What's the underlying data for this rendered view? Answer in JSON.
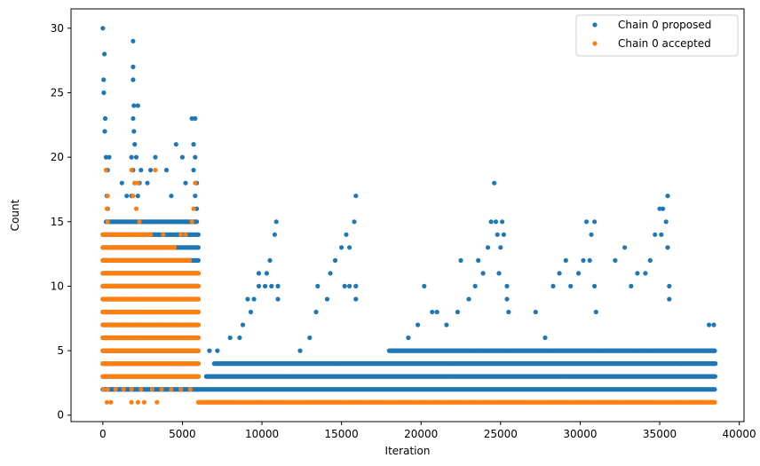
{
  "chart_data": {
    "type": "scatter",
    "title": "",
    "xlabel": "Iteration",
    "ylabel": "Count",
    "xlim": [
      -2000,
      40300
    ],
    "ylim": [
      -0.5,
      31.5
    ],
    "x_ticks": [
      0,
      5000,
      10000,
      15000,
      20000,
      25000,
      30000,
      35000,
      40000
    ],
    "y_ticks": [
      0,
      5,
      10,
      15,
      20,
      25,
      30
    ],
    "grid": false,
    "legend_position": "top-right",
    "series": [
      {
        "name": "Chain 0 proposed",
        "color": "#1f77b4",
        "bands": [
          {
            "y": 2,
            "x": [
              0,
              6000
            ]
          },
          {
            "y": 3,
            "x": [
              0,
              6000
            ]
          },
          {
            "y": 4,
            "x": [
              0,
              6000
            ]
          },
          {
            "y": 5,
            "x": [
              0,
              6000
            ]
          },
          {
            "y": 6,
            "x": [
              0,
              6000
            ]
          },
          {
            "y": 7,
            "x": [
              0,
              6000
            ]
          },
          {
            "y": 8,
            "x": [
              0,
              6000
            ]
          },
          {
            "y": 9,
            "x": [
              0,
              6000
            ]
          },
          {
            "y": 10,
            "x": [
              0,
              6000
            ]
          },
          {
            "y": 11,
            "x": [
              0,
              6000
            ]
          },
          {
            "y": 12,
            "x": [
              0,
              6000
            ]
          },
          {
            "y": 13,
            "x": [
              0,
              6000
            ]
          },
          {
            "y": 14,
            "x": [
              0,
              6000
            ]
          },
          {
            "y": 15,
            "x": [
              200,
              5900
            ]
          },
          {
            "y": 2,
            "x": [
              6000,
              38500
            ]
          },
          {
            "y": 3,
            "x": [
              6500,
              38500
            ]
          },
          {
            "y": 4,
            "x": [
              7000,
              38500
            ]
          },
          {
            "y": 5,
            "x": [
              18000,
              38500
            ]
          }
        ],
        "values": [
          {
            "x": 0,
            "y": 30
          },
          {
            "x": 100,
            "y": 28
          },
          {
            "x": 50,
            "y": 26
          },
          {
            "x": 60,
            "y": 25
          },
          {
            "x": 150,
            "y": 23
          },
          {
            "x": 120,
            "y": 22
          },
          {
            "x": 200,
            "y": 20
          },
          {
            "x": 400,
            "y": 20
          },
          {
            "x": 300,
            "y": 19
          },
          {
            "x": 250,
            "y": 17
          },
          {
            "x": 300,
            "y": 16
          },
          {
            "x": 1200,
            "y": 18
          },
          {
            "x": 1500,
            "y": 17
          },
          {
            "x": 1900,
            "y": 29
          },
          {
            "x": 1900,
            "y": 27
          },
          {
            "x": 1900,
            "y": 26
          },
          {
            "x": 1950,
            "y": 24
          },
          {
            "x": 2200,
            "y": 24
          },
          {
            "x": 1900,
            "y": 23
          },
          {
            "x": 1950,
            "y": 22
          },
          {
            "x": 2000,
            "y": 21
          },
          {
            "x": 1800,
            "y": 20
          },
          {
            "x": 2100,
            "y": 20
          },
          {
            "x": 1900,
            "y": 19
          },
          {
            "x": 2400,
            "y": 19
          },
          {
            "x": 2000,
            "y": 18
          },
          {
            "x": 2300,
            "y": 18
          },
          {
            "x": 1800,
            "y": 17
          },
          {
            "x": 2200,
            "y": 17
          },
          {
            "x": 2800,
            "y": 18
          },
          {
            "x": 3000,
            "y": 19
          },
          {
            "x": 3300,
            "y": 20
          },
          {
            "x": 4000,
            "y": 19
          },
          {
            "x": 4300,
            "y": 17
          },
          {
            "x": 4600,
            "y": 21
          },
          {
            "x": 5000,
            "y": 20
          },
          {
            "x": 5200,
            "y": 18
          },
          {
            "x": 5600,
            "y": 23
          },
          {
            "x": 5800,
            "y": 23
          },
          {
            "x": 5700,
            "y": 21
          },
          {
            "x": 5800,
            "y": 20
          },
          {
            "x": 5700,
            "y": 19
          },
          {
            "x": 5900,
            "y": 18
          },
          {
            "x": 5800,
            "y": 17
          },
          {
            "x": 5900,
            "y": 16
          },
          {
            "x": 6700,
            "y": 5
          },
          {
            "x": 7200,
            "y": 5
          },
          {
            "x": 8000,
            "y": 6
          },
          {
            "x": 8600,
            "y": 6
          },
          {
            "x": 8800,
            "y": 7
          },
          {
            "x": 9300,
            "y": 8
          },
          {
            "x": 9100,
            "y": 9
          },
          {
            "x": 9500,
            "y": 9
          },
          {
            "x": 9800,
            "y": 10
          },
          {
            "x": 9800,
            "y": 11
          },
          {
            "x": 10300,
            "y": 11
          },
          {
            "x": 10500,
            "y": 12
          },
          {
            "x": 10800,
            "y": 14
          },
          {
            "x": 10900,
            "y": 15
          },
          {
            "x": 10200,
            "y": 10
          },
          {
            "x": 10600,
            "y": 10
          },
          {
            "x": 11000,
            "y": 10
          },
          {
            "x": 11000,
            "y": 9
          },
          {
            "x": 12400,
            "y": 5
          },
          {
            "x": 13000,
            "y": 6
          },
          {
            "x": 13400,
            "y": 8
          },
          {
            "x": 13500,
            "y": 10
          },
          {
            "x": 14100,
            "y": 9
          },
          {
            "x": 14300,
            "y": 11
          },
          {
            "x": 14600,
            "y": 12
          },
          {
            "x": 15000,
            "y": 13
          },
          {
            "x": 15300,
            "y": 14
          },
          {
            "x": 15500,
            "y": 13
          },
          {
            "x": 15800,
            "y": 15
          },
          {
            "x": 15900,
            "y": 17
          },
          {
            "x": 15900,
            "y": 10
          },
          {
            "x": 15900,
            "y": 9
          },
          {
            "x": 15500,
            "y": 10
          },
          {
            "x": 15200,
            "y": 10
          },
          {
            "x": 17200,
            "y": 4
          },
          {
            "x": 18500,
            "y": 5
          },
          {
            "x": 19200,
            "y": 6
          },
          {
            "x": 19800,
            "y": 7
          },
          {
            "x": 20200,
            "y": 10
          },
          {
            "x": 20700,
            "y": 8
          },
          {
            "x": 21000,
            "y": 8
          },
          {
            "x": 21600,
            "y": 7
          },
          {
            "x": 22300,
            "y": 8
          },
          {
            "x": 22500,
            "y": 12
          },
          {
            "x": 23000,
            "y": 9
          },
          {
            "x": 23400,
            "y": 10
          },
          {
            "x": 23600,
            "y": 12
          },
          {
            "x": 23900,
            "y": 11
          },
          {
            "x": 24200,
            "y": 13
          },
          {
            "x": 24400,
            "y": 15
          },
          {
            "x": 24600,
            "y": 18
          },
          {
            "x": 24700,
            "y": 15
          },
          {
            "x": 24800,
            "y": 14
          },
          {
            "x": 25100,
            "y": 15
          },
          {
            "x": 25000,
            "y": 13
          },
          {
            "x": 25200,
            "y": 14
          },
          {
            "x": 24900,
            "y": 11
          },
          {
            "x": 25400,
            "y": 9
          },
          {
            "x": 25400,
            "y": 10
          },
          {
            "x": 25500,
            "y": 8
          },
          {
            "x": 27200,
            "y": 8
          },
          {
            "x": 27800,
            "y": 6
          },
          {
            "x": 28300,
            "y": 10
          },
          {
            "x": 28700,
            "y": 11
          },
          {
            "x": 29100,
            "y": 12
          },
          {
            "x": 29400,
            "y": 10
          },
          {
            "x": 29900,
            "y": 11
          },
          {
            "x": 30200,
            "y": 12
          },
          {
            "x": 30400,
            "y": 15
          },
          {
            "x": 30700,
            "y": 14
          },
          {
            "x": 30900,
            "y": 15
          },
          {
            "x": 30600,
            "y": 12
          },
          {
            "x": 30900,
            "y": 10
          },
          {
            "x": 31000,
            "y": 8
          },
          {
            "x": 32200,
            "y": 12
          },
          {
            "x": 32800,
            "y": 13
          },
          {
            "x": 33200,
            "y": 10
          },
          {
            "x": 33600,
            "y": 11
          },
          {
            "x": 34100,
            "y": 11
          },
          {
            "x": 34400,
            "y": 12
          },
          {
            "x": 34700,
            "y": 14
          },
          {
            "x": 35000,
            "y": 16
          },
          {
            "x": 35200,
            "y": 16
          },
          {
            "x": 35500,
            "y": 17
          },
          {
            "x": 35400,
            "y": 15
          },
          {
            "x": 35100,
            "y": 14
          },
          {
            "x": 35500,
            "y": 13
          },
          {
            "x": 35600,
            "y": 10
          },
          {
            "x": 35600,
            "y": 9
          },
          {
            "x": 36300,
            "y": 4
          },
          {
            "x": 36800,
            "y": 4
          },
          {
            "x": 37800,
            "y": 5
          },
          {
            "x": 38100,
            "y": 7
          },
          {
            "x": 38400,
            "y": 7
          },
          {
            "x": 38400,
            "y": 5
          }
        ]
      },
      {
        "name": "Chain 0 accepted",
        "color": "#ff7f0e",
        "bands": [
          {
            "y": 1,
            "x": [
              6000,
              38500
            ]
          },
          {
            "y": 3,
            "x": [
              0,
              6000
            ]
          },
          {
            "y": 4,
            "x": [
              0,
              6000
            ]
          },
          {
            "y": 5,
            "x": [
              0,
              6000
            ]
          },
          {
            "y": 6,
            "x": [
              0,
              6000
            ]
          },
          {
            "y": 7,
            "x": [
              0,
              6000
            ]
          },
          {
            "y": 8,
            "x": [
              0,
              6000
            ]
          },
          {
            "y": 9,
            "x": [
              0,
              6000
            ]
          },
          {
            "y": 10,
            "x": [
              0,
              6000
            ]
          },
          {
            "y": 11,
            "x": [
              0,
              6000
            ]
          },
          {
            "y": 12,
            "x": [
              0,
              5500
            ]
          },
          {
            "y": 13,
            "x": [
              0,
              4500
            ]
          },
          {
            "y": 14,
            "x": [
              0,
              3000
            ]
          }
        ],
        "values": [
          {
            "x": 50,
            "y": 2
          },
          {
            "x": 300,
            "y": 2
          },
          {
            "x": 800,
            "y": 2
          },
          {
            "x": 1300,
            "y": 2
          },
          {
            "x": 1800,
            "y": 2
          },
          {
            "x": 2400,
            "y": 2
          },
          {
            "x": 3100,
            "y": 2
          },
          {
            "x": 3700,
            "y": 2
          },
          {
            "x": 4300,
            "y": 2
          },
          {
            "x": 4900,
            "y": 2
          },
          {
            "x": 5500,
            "y": 2
          },
          {
            "x": 250,
            "y": 1
          },
          {
            "x": 500,
            "y": 1
          },
          {
            "x": 1800,
            "y": 1
          },
          {
            "x": 2200,
            "y": 1
          },
          {
            "x": 2600,
            "y": 1
          },
          {
            "x": 3400,
            "y": 1
          },
          {
            "x": 200,
            "y": 19
          },
          {
            "x": 300,
            "y": 17
          },
          {
            "x": 250,
            "y": 16
          },
          {
            "x": 300,
            "y": 15
          },
          {
            "x": 1800,
            "y": 19
          },
          {
            "x": 2000,
            "y": 18
          },
          {
            "x": 2200,
            "y": 18
          },
          {
            "x": 1900,
            "y": 17
          },
          {
            "x": 2100,
            "y": 16
          },
          {
            "x": 2300,
            "y": 15
          },
          {
            "x": 3300,
            "y": 19
          },
          {
            "x": 5700,
            "y": 16
          },
          {
            "x": 5800,
            "y": 18
          },
          {
            "x": 5600,
            "y": 15
          },
          {
            "x": 4900,
            "y": 14
          },
          {
            "x": 5200,
            "y": 14
          },
          {
            "x": 3800,
            "y": 14
          },
          {
            "x": 4200,
            "y": 13
          }
        ]
      }
    ]
  }
}
